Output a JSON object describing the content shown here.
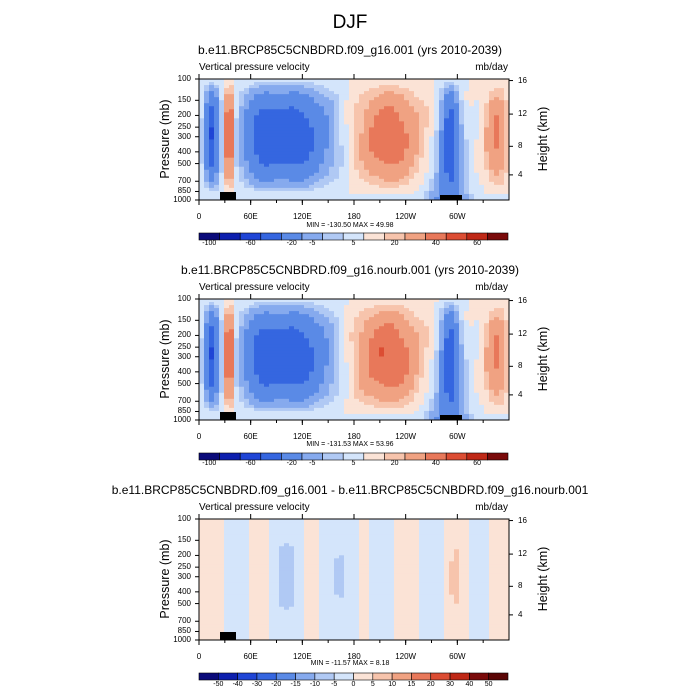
{
  "main_title": "DJF",
  "chart_data": [
    {
      "type": "heatmap",
      "title": "b.e11.BRCP85C5CNBDRD.f09_g16.001 (yrs 2010-2039)",
      "variable": "Vertical pressure velocity",
      "units": "mb/day",
      "ylabel": "Pressure (mb)",
      "ylabel_right": "Height (km)",
      "x_ticks": [
        "0",
        "60E",
        "120E",
        "180",
        "120W",
        "60W"
      ],
      "y_ticks": [
        "100",
        "150",
        "200",
        "250",
        "300",
        "400",
        "500",
        "700",
        "850",
        "1000"
      ],
      "y_ticks_right": [
        "16",
        "12",
        "8",
        "4"
      ],
      "stats": "MIN = -130.50  MAX =  49.98",
      "levels_labels": [
        "-100",
        "-60",
        "-20",
        "-5",
        "5",
        "20",
        "40",
        "60"
      ],
      "colorbar": [
        "#0a0a7a",
        "#0d1fae",
        "#1f45d6",
        "#3566e0",
        "#5a8ae6",
        "#86aaee",
        "#b0c9f4",
        "#d4e5fb",
        "#fbe3d6",
        "#f7c4ac",
        "#f0a282",
        "#e8785a",
        "#dc4d33",
        "#bf2816",
        "#7a0a0a"
      ]
    },
    {
      "type": "heatmap",
      "title": "b.e11.BRCP85C5CNBDRD.f09_g16.nourb.001 (yrs 2010-2039)",
      "variable": "Vertical pressure velocity",
      "units": "mb/day",
      "ylabel": "Pressure (mb)",
      "ylabel_right": "Height (km)",
      "x_ticks": [
        "0",
        "60E",
        "120E",
        "180",
        "120W",
        "60W"
      ],
      "y_ticks": [
        "100",
        "150",
        "200",
        "250",
        "300",
        "400",
        "500",
        "700",
        "850",
        "1000"
      ],
      "y_ticks_right": [
        "16",
        "12",
        "8",
        "4"
      ],
      "stats": "MIN = -131.53  MAX =  53.96",
      "levels_labels": [
        "-100",
        "-60",
        "-20",
        "-5",
        "5",
        "20",
        "40",
        "60"
      ],
      "colorbar": [
        "#0a0a7a",
        "#0d1fae",
        "#1f45d6",
        "#3566e0",
        "#5a8ae6",
        "#86aaee",
        "#b0c9f4",
        "#d4e5fb",
        "#fbe3d6",
        "#f7c4ac",
        "#f0a282",
        "#e8785a",
        "#dc4d33",
        "#bf2816",
        "#7a0a0a"
      ]
    },
    {
      "type": "heatmap",
      "title": "b.e11.BRCP85C5CNBDRD.f09_g16.001 - b.e11.BRCP85C5CNBDRD.f09_g16.nourb.001",
      "variable": "Vertical pressure velocity",
      "units": "mb/day",
      "ylabel": "Pressure (mb)",
      "ylabel_right": "Height (km)",
      "x_ticks": [
        "0",
        "60E",
        "120E",
        "180",
        "120W",
        "60W"
      ],
      "y_ticks": [
        "100",
        "150",
        "200",
        "250",
        "300",
        "400",
        "500",
        "700",
        "850",
        "1000"
      ],
      "y_ticks_right": [
        "16",
        "12",
        "8",
        "4"
      ],
      "stats": "MIN = -11.57  MAX =   8.18",
      "levels_labels": [
        "-50",
        "-40",
        "-30",
        "-20",
        "-15",
        "-10",
        "-5",
        "0",
        "5",
        "10",
        "15",
        "20",
        "30",
        "40",
        "50"
      ],
      "colorbar": [
        "#0a0a7a",
        "#0d1fae",
        "#1f45d6",
        "#3566e0",
        "#5a8ae6",
        "#86aaee",
        "#b0c9f4",
        "#d4e5fb",
        "#fbe3d6",
        "#f7c4ac",
        "#f0a282",
        "#e8785a",
        "#dc4d33",
        "#bf2816",
        "#7a0a0a",
        "#5a0505"
      ]
    }
  ]
}
